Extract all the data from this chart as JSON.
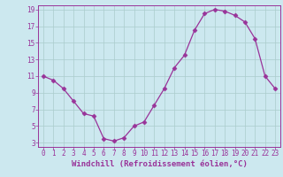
{
  "x": [
    0,
    1,
    2,
    3,
    4,
    5,
    6,
    7,
    8,
    9,
    10,
    11,
    12,
    13,
    14,
    15,
    16,
    17,
    18,
    19,
    20,
    21,
    22,
    23
  ],
  "y": [
    11,
    10.5,
    9.5,
    8,
    6.5,
    6.2,
    3.5,
    3.2,
    3.6,
    5.0,
    5.5,
    7.5,
    9.5,
    12,
    13.5,
    16.5,
    18.5,
    19.0,
    18.8,
    18.3,
    17.5,
    15.5,
    11.0,
    9.5
  ],
  "line_color": "#993399",
  "marker": "D",
  "marker_size": 2.5,
  "bg_color": "#cce8ef",
  "grid_color": "#aacccc",
  "xlabel": "Windchill (Refroidissement éolien,°C)",
  "xlim": [
    -0.5,
    23.5
  ],
  "ylim": [
    2.5,
    19.5
  ],
  "yticks": [
    3,
    5,
    7,
    9,
    11,
    13,
    15,
    17,
    19
  ],
  "xticks": [
    0,
    1,
    2,
    3,
    4,
    5,
    6,
    7,
    8,
    9,
    10,
    11,
    12,
    13,
    14,
    15,
    16,
    17,
    18,
    19,
    20,
    21,
    22,
    23
  ],
  "tick_fontsize": 5.5,
  "label_fontsize": 6.5
}
